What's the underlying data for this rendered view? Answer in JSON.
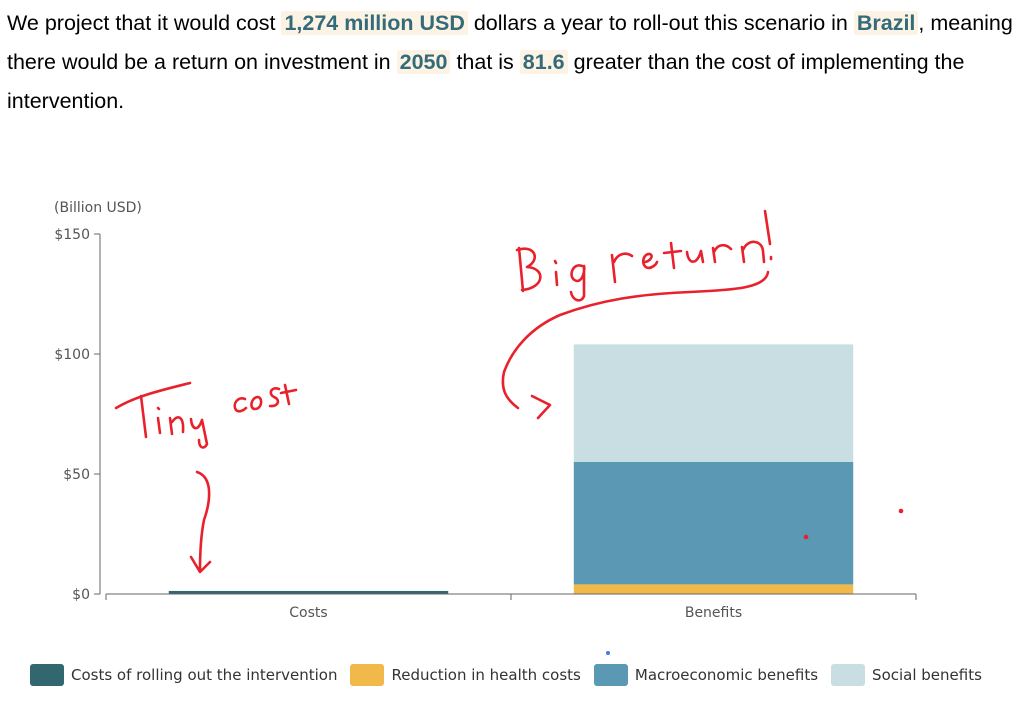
{
  "intro": {
    "p1": "We project that it would cost ",
    "cost": "1,274 million USD",
    "p2": " dollars a year to roll-out this scenario in ",
    "country": "Brazil",
    "p3": ", meaning there would be a return on investment in ",
    "year": "2050",
    "p4": " that is ",
    "ratio": "81.6",
    "p5": " greater than the cost of implementing the intervention."
  },
  "annotations": {
    "left": "Tiny cost",
    "right": "Big return!"
  },
  "colors": {
    "costs": "#336770",
    "health": "#f0b949",
    "macro": "#5a98b4",
    "social": "#c8dee2",
    "highlight_text": "#336b7a",
    "highlight_bg": "#fdf3e4",
    "annotation": "#e8212c"
  },
  "chart_data": {
    "type": "bar",
    "stacked": true,
    "ylabel": "(Billion USD)",
    "ylim": [
      0,
      150
    ],
    "yticks": [
      "$150",
      "$100",
      "$50",
      "$0"
    ],
    "ytick_values": [
      150,
      100,
      50,
      0
    ],
    "categories": [
      "Costs",
      "Benefits"
    ],
    "series": [
      {
        "name": "Costs of rolling out the intervention",
        "values": [
          1.27,
          0
        ]
      },
      {
        "name": "Reduction in health costs",
        "values": [
          0,
          4
        ]
      },
      {
        "name": "Macroeconomic benefits",
        "values": [
          0,
          51
        ]
      },
      {
        "name": "Social benefits",
        "values": [
          0,
          49
        ]
      }
    ],
    "legend_position": "bottom"
  }
}
